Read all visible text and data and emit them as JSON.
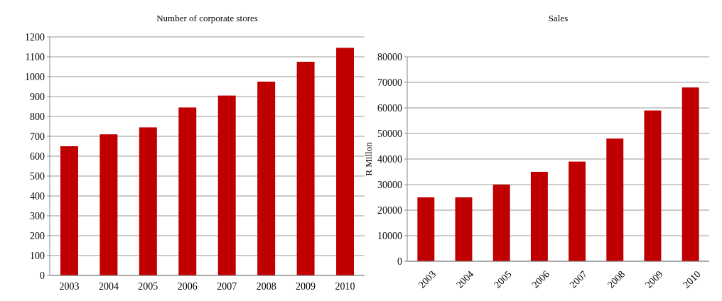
{
  "chart_data": [
    {
      "type": "bar",
      "title": "Number of corporate stores",
      "categories": [
        "2003",
        "2004",
        "2005",
        "2006",
        "2007",
        "2008",
        "2009",
        "2010"
      ],
      "values": [
        650,
        710,
        745,
        845,
        905,
        975,
        1075,
        1145
      ],
      "color": "#c00000",
      "ylim": [
        0,
        1200
      ],
      "yticks": [
        0,
        100,
        200,
        300,
        400,
        500,
        600,
        700,
        800,
        900,
        1000,
        1100,
        1200
      ],
      "grid": "y"
    },
    {
      "type": "bar",
      "title": "Sales",
      "ylabel": "R Millon",
      "categories": [
        "2003",
        "2004",
        "2005",
        "2006",
        "2007",
        "2008",
        "2009",
        "2010"
      ],
      "values": [
        25000,
        25000,
        30000,
        35000,
        39000,
        48000,
        59000,
        68000
      ],
      "color": "#c00000",
      "ylim": [
        0,
        80000
      ],
      "yticks": [
        0,
        10000,
        20000,
        30000,
        40000,
        50000,
        60000,
        70000,
        80000
      ],
      "grid": "y"
    }
  ]
}
